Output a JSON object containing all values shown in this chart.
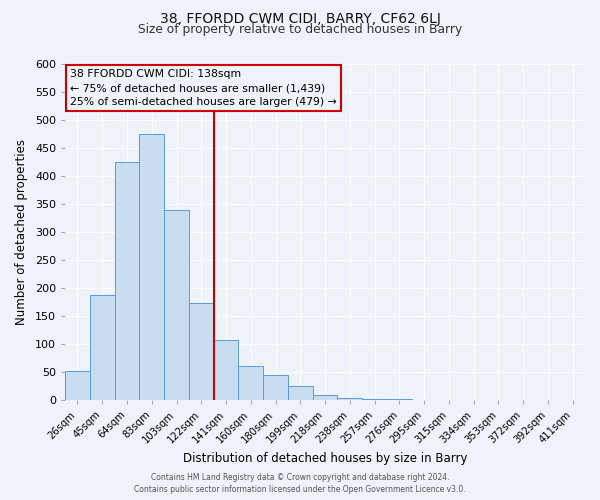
{
  "title_top": "38, FFORDD CWM CIDI, BARRY, CF62 6LJ",
  "title_main": "Size of property relative to detached houses in Barry",
  "xlabel": "Distribution of detached houses by size in Barry",
  "ylabel": "Number of detached properties",
  "bar_labels": [
    "26sqm",
    "45sqm",
    "64sqm",
    "83sqm",
    "103sqm",
    "122sqm",
    "141sqm",
    "160sqm",
    "180sqm",
    "199sqm",
    "218sqm",
    "238sqm",
    "257sqm",
    "276sqm",
    "295sqm",
    "315sqm",
    "334sqm",
    "353sqm",
    "372sqm",
    "392sqm",
    "411sqm"
  ],
  "bar_values": [
    52,
    188,
    425,
    475,
    340,
    173,
    107,
    62,
    46,
    25,
    10,
    5,
    3,
    2,
    1,
    1,
    0,
    0,
    1,
    0,
    1
  ],
  "bar_color": "#c9ddf0",
  "bar_edge_color": "#5b9bd5",
  "reference_line_label_index": 6,
  "annotation_line1": "38 FFORDD CWM CIDI: 138sqm",
  "annotation_line2": "← 75% of detached houses are smaller (1,439)",
  "annotation_line3": "25% of semi-detached houses are larger (479) →",
  "ylim": [
    0,
    600
  ],
  "yticks": [
    0,
    50,
    100,
    150,
    200,
    250,
    300,
    350,
    400,
    450,
    500,
    550,
    600
  ],
  "footer1": "Contains HM Land Registry data © Crown copyright and database right 2024.",
  "footer2": "Contains public sector information licensed under the Open Government Licence v3.0.",
  "bg_color": "#eef2f9",
  "grid_color": "#ffffff",
  "annotation_box_edge": "#cc0000"
}
